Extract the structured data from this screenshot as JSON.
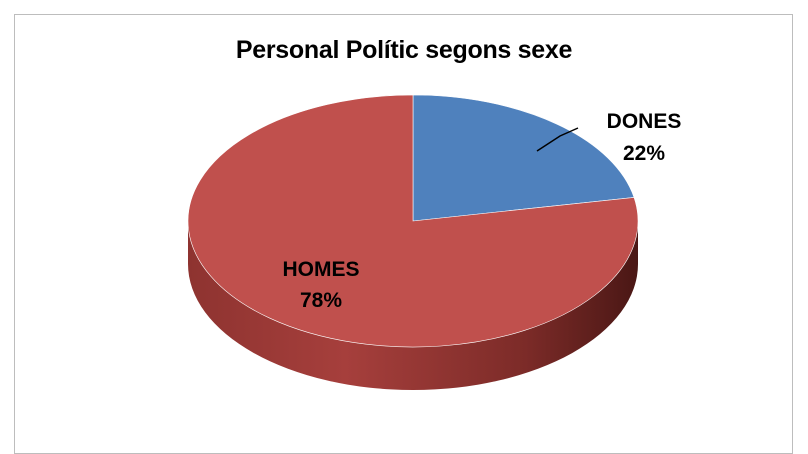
{
  "chart_data": {
    "type": "pie",
    "title": "Personal Polític segons sexe",
    "slices": [
      {
        "label": "DONES",
        "value": 22,
        "percent_label": "22%",
        "color": "#4f81bd"
      },
      {
        "label": "HOMES",
        "value": 78,
        "percent_label": "78%",
        "color": "#c0504d"
      }
    ],
    "style": "3d",
    "legend": "none"
  }
}
